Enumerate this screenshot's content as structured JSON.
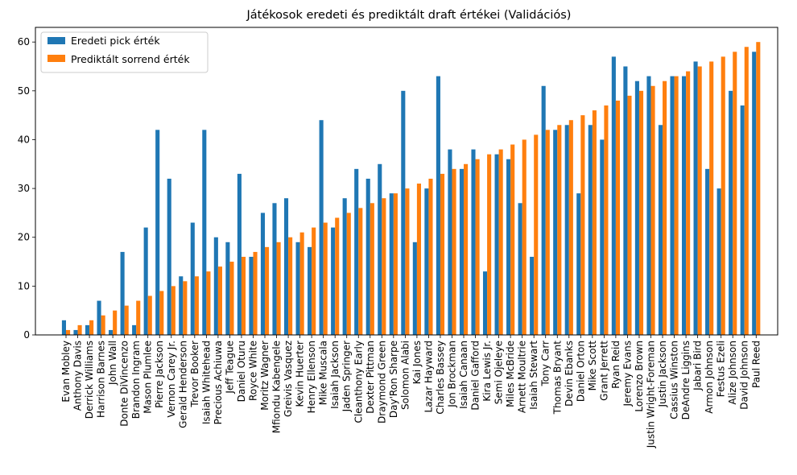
{
  "chart_data": {
    "type": "bar",
    "title": "Játékosok eredeti és prediktált draft értékei (Validációs)",
    "xlabel": "",
    "ylabel": "",
    "ylim": [
      0,
      63
    ],
    "yticks": [
      0,
      10,
      20,
      30,
      40,
      50,
      60
    ],
    "grid": false,
    "legend_position": "top-left",
    "categories": [
      "Evan Mobley",
      "Anthony Davis",
      "Derrick Williams",
      "Harrison Barnes",
      "John Wall",
      "Donte DiVincenzo",
      "Brandon Ingram",
      "Mason Plumlee",
      "Pierre Jackson",
      "Vernon Carey Jr.",
      "Gerald Henderson",
      "Trevor Booker",
      "Isaiah Whitehead",
      "Precious Achiuwa",
      "Jeff Teague",
      "Daniel Oturu",
      "Royce White",
      "Moritz Wagner",
      "Mfiondu Kabengele",
      "Greivis Vasquez",
      "Kevin Huerter",
      "Henry Ellenson",
      "Mike Muscala",
      "Isaiah Jackson",
      "Jaden Springer",
      "Cleanthony Early",
      "Dexter Pittman",
      "Draymond Green",
      "Day'Ron Sharpe",
      "Solomon Alabi",
      "Kai Jones",
      "Lazar Hayward",
      "Charles Bassey",
      "Jon Brockman",
      "Isaiah Canaan",
      "Daniel Gafford",
      "Kira Lewis Jr.",
      "Semi Ojeleye",
      "Miles McBride",
      "Arnett Moultrie",
      "Isaiah Stewart",
      "Tony Carr",
      "Thomas Bryant",
      "Devin Ebanks",
      "Daniel Orton",
      "Mike Scott",
      "Grant Jerrett",
      "Ryan Reid",
      "Jeremy Evans",
      "Lorenzo Brown",
      "Justin Wright-Foreman",
      "Justin Jackson",
      "Cassius Winston",
      "DeAndre Liggins",
      "Jabari Bird",
      "Armon Johnson",
      "Festus Ezeli",
      "Alize Johnson",
      "David Johnson",
      "Paul Reed"
    ],
    "series": [
      {
        "name": "Eredeti pick érték",
        "color": "#1f77b4",
        "values": [
          3,
          1,
          2,
          7,
          1,
          17,
          2,
          22,
          42,
          32,
          12,
          23,
          42,
          20,
          19,
          33,
          16,
          25,
          27,
          28,
          19,
          18,
          44,
          22,
          28,
          34,
          32,
          35,
          29,
          50,
          19,
          30,
          53,
          38,
          34,
          38,
          13,
          37,
          36,
          27,
          16,
          51,
          42,
          43,
          29,
          43,
          40,
          57,
          55,
          52,
          53,
          43,
          53,
          53,
          56,
          34,
          30,
          50,
          47,
          58
        ]
      },
      {
        "name": "Prediktált sorrend érték",
        "color": "#ff7f0e",
        "values": [
          1,
          2,
          3,
          4,
          5,
          6,
          7,
          8,
          9,
          10,
          11,
          12,
          13,
          14,
          15,
          16,
          17,
          18,
          19,
          20,
          21,
          22,
          23,
          24,
          25,
          26,
          27,
          28,
          29,
          30,
          31,
          32,
          33,
          34,
          35,
          36,
          37,
          38,
          39,
          40,
          41,
          42,
          43,
          44,
          45,
          46,
          47,
          48,
          49,
          50,
          51,
          52,
          53,
          54,
          55,
          56,
          57,
          58,
          59,
          60
        ]
      }
    ]
  }
}
